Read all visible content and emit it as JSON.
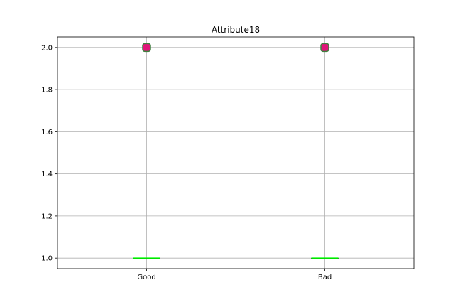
{
  "chart_data": {
    "type": "box",
    "title": "Attribute18",
    "xlabel": "",
    "ylabel": "",
    "categories": [
      "Good",
      "Bad"
    ],
    "boxes": [
      {
        "category": "Good",
        "min": 1.0,
        "q1": 1.0,
        "median": 1.0,
        "q3": 1.0,
        "max": 1.0,
        "outliers": [
          2.0
        ]
      },
      {
        "category": "Bad",
        "min": 1.0,
        "q1": 1.0,
        "median": 1.0,
        "q3": 1.0,
        "max": 1.0,
        "outliers": [
          2.0
        ]
      }
    ],
    "ylim": [
      0.95,
      2.05
    ],
    "yticks": [
      1.0,
      1.2,
      1.4,
      1.6,
      1.8,
      2.0
    ],
    "ytick_labels": [
      "1.0",
      "1.2",
      "1.4",
      "1.6",
      "1.8",
      "2.0"
    ],
    "grid": true,
    "colors": {
      "median": "#00ff00",
      "outlier_fill": "#e0157a",
      "outlier_edge": "#3f7f3f",
      "grid": "#b0b0b0",
      "axes": "#000000"
    }
  }
}
